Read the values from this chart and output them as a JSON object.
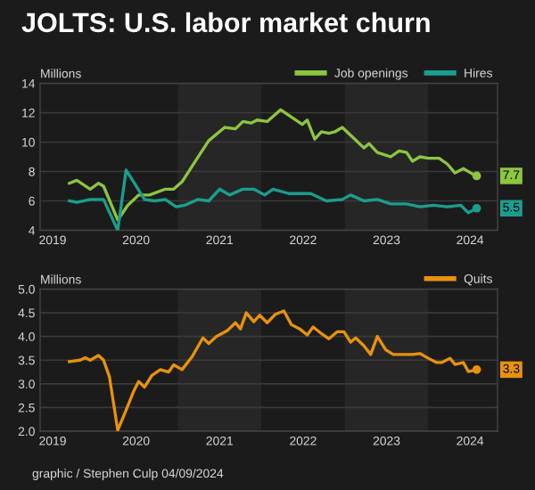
{
  "chart_data": [
    {
      "type": "line",
      "title": "JOLTS: U.S. labor market churn",
      "ylabel": "Millions",
      "series": [
        {
          "name": "Job openings",
          "color": "#8dc63f",
          "x": [
            2019.7,
            2019.79,
            2019.95,
            2020.05,
            2020.11,
            2020.28,
            2020.4,
            2020.53,
            2020.66,
            2020.85,
            2020.95,
            2021.05,
            2021.21,
            2021.37,
            2021.56,
            2021.69,
            2021.78,
            2021.88,
            2021.95,
            2022.07,
            2022.23,
            2022.36,
            2022.49,
            2022.55,
            2022.64,
            2022.72,
            2022.81,
            2022.88,
            2022.97,
            2023.1,
            2023.23,
            2023.29,
            2023.39,
            2023.55,
            2023.65,
            2023.74,
            2023.81,
            2023.9,
            2024.0,
            2024.13,
            2024.23,
            2024.32,
            2024.42,
            2024.51,
            2024.58
          ],
          "values": [
            7.2,
            7.4,
            6.8,
            7.2,
            7.0,
            4.7,
            5.7,
            6.4,
            6.4,
            6.8,
            6.8,
            7.3,
            8.7,
            10.1,
            11.0,
            10.9,
            11.4,
            11.3,
            11.5,
            11.4,
            12.2,
            11.7,
            11.2,
            11.5,
            10.2,
            10.7,
            10.6,
            10.7,
            11.0,
            10.3,
            9.6,
            9.9,
            9.3,
            9.0,
            9.4,
            9.3,
            8.7,
            9.0,
            8.9,
            8.9,
            8.5,
            7.9,
            8.2,
            7.9,
            7.7
          ]
        },
        {
          "name": "Hires",
          "color": "#1a9e8f",
          "x": [
            2019.7,
            2019.79,
            2019.95,
            2020.11,
            2020.28,
            2020.38,
            2020.47,
            2020.6,
            2020.72,
            2020.85,
            2020.98,
            2021.08,
            2021.24,
            2021.37,
            2021.5,
            2021.62,
            2021.78,
            2021.91,
            2022.04,
            2022.14,
            2022.33,
            2022.59,
            2022.78,
            2022.97,
            2023.07,
            2023.23,
            2023.39,
            2023.55,
            2023.74,
            2023.9,
            2024.06,
            2024.23,
            2024.39,
            2024.48,
            2024.58
          ],
          "values": [
            6.0,
            5.9,
            6.1,
            6.1,
            4.0,
            8.1,
            7.3,
            6.1,
            6.0,
            6.1,
            5.6,
            5.7,
            6.1,
            6.0,
            6.8,
            6.4,
            6.8,
            6.8,
            6.4,
            6.8,
            6.5,
            6.5,
            6.0,
            6.1,
            6.4,
            6.0,
            6.1,
            5.8,
            5.8,
            5.6,
            5.7,
            5.6,
            5.7,
            5.2,
            5.5
          ]
        }
      ],
      "xlim": [
        2019.35,
        2024.83
      ],
      "xticks": [
        {
          "value": 2019.5,
          "label": "2019"
        },
        {
          "value": 2020.5,
          "label": "2020"
        },
        {
          "value": 2021.5,
          "label": "2021"
        },
        {
          "value": 2022.5,
          "label": "2022"
        },
        {
          "value": 2023.5,
          "label": "2023"
        },
        {
          "value": 2024.5,
          "label": "2024"
        }
      ],
      "ylim": [
        4,
        14
      ],
      "yticks": [
        4,
        6,
        8,
        10,
        12,
        14
      ],
      "bands": [
        {
          "axis": "x",
          "from": 2021.0,
          "to": 2022.0,
          "color": "#262626"
        },
        {
          "axis": "x",
          "from": 2023.0,
          "to": 2024.0,
          "color": "#262626"
        }
      ],
      "annotations": [
        {
          "text": "7.7",
          "y": 7.7
        },
        {
          "text": "5.5",
          "y": 5.5
        }
      ],
      "grid": "y",
      "legend": "top right",
      "marker": "none",
      "line_style": "solid"
    },
    {
      "type": "line",
      "ylabel": "Millions",
      "series": [
        {
          "name": "Quits",
          "color": "#e8920c",
          "x": [
            2019.7,
            2019.83,
            2019.89,
            2019.95,
            2020.05,
            2020.11,
            2020.18,
            2020.28,
            2020.37,
            2020.47,
            2020.53,
            2020.6,
            2020.69,
            2020.79,
            2020.89,
            2020.95,
            2021.05,
            2021.17,
            2021.3,
            2021.37,
            2021.46,
            2021.59,
            2021.69,
            2021.75,
            2021.82,
            2021.91,
            2021.98,
            2022.07,
            2022.17,
            2022.27,
            2022.36,
            2022.46,
            2022.55,
            2022.62,
            2022.72,
            2022.81,
            2022.91,
            2022.99,
            2023.07,
            2023.13,
            2023.23,
            2023.31,
            2023.39,
            2023.49,
            2023.58,
            2023.81,
            2023.9,
            2024.0,
            2024.1,
            2024.16,
            2024.26,
            2024.32,
            2024.42,
            2024.48,
            2024.58
          ],
          "values": [
            3.47,
            3.5,
            3.55,
            3.5,
            3.6,
            3.5,
            3.15,
            2.02,
            2.4,
            2.84,
            3.05,
            2.93,
            3.18,
            3.3,
            3.25,
            3.4,
            3.3,
            3.57,
            3.97,
            3.85,
            4.0,
            4.12,
            4.29,
            4.16,
            4.5,
            4.31,
            4.45,
            4.29,
            4.47,
            4.54,
            4.25,
            4.16,
            4.03,
            4.2,
            4.06,
            3.95,
            4.1,
            4.1,
            3.88,
            3.97,
            3.8,
            3.62,
            4.0,
            3.72,
            3.62,
            3.62,
            3.64,
            3.54,
            3.45,
            3.45,
            3.54,
            3.41,
            3.45,
            3.26,
            3.3
          ]
        }
      ],
      "xlim": [
        2019.35,
        2024.83
      ],
      "xticks": [
        {
          "value": 2019.5,
          "label": "2019"
        },
        {
          "value": 2020.5,
          "label": "2020"
        },
        {
          "value": 2021.5,
          "label": "2021"
        },
        {
          "value": 2022.5,
          "label": "2022"
        },
        {
          "value": 2023.5,
          "label": "2023"
        },
        {
          "value": 2024.5,
          "label": "2024"
        }
      ],
      "ylim": [
        2.0,
        5.0
      ],
      "yticks": [
        {
          "value": 2.0,
          "label": "2.0"
        },
        2.5,
        {
          "value": 3.0,
          "label": "3.0"
        },
        3.5,
        {
          "value": 4.0,
          "label": "4.0"
        },
        4.5,
        {
          "value": 5.0,
          "label": "5.0"
        }
      ],
      "bands": [
        {
          "axis": "x",
          "from": 2021.0,
          "to": 2022.0,
          "color": "#262626"
        },
        {
          "axis": "x",
          "from": 2023.0,
          "to": 2024.0,
          "color": "#262626"
        }
      ],
      "annotations": [
        {
          "text": "3.3",
          "y": 3.3
        },
        "graphic / Stephen Culp 04/09/2024"
      ],
      "grid": "y",
      "legend": "top right",
      "marker": "none",
      "line_style": "solid"
    }
  ]
}
